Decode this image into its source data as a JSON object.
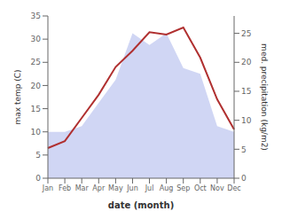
{
  "chart_data": {
    "type": "line",
    "categories": [
      "Jan",
      "Feb",
      "Mar",
      "Apr",
      "May",
      "Jun",
      "Jul",
      "Aug",
      "Sep",
      "Oct",
      "Nov",
      "Dec"
    ],
    "series": [
      {
        "type": "area",
        "axis": "y2",
        "color": "#c0c8f0",
        "values": [
          8.0,
          8.0,
          9.0,
          13.0,
          17.0,
          25.0,
          23.0,
          25.0,
          19.0,
          18.0,
          9.0,
          8.0
        ]
      },
      {
        "type": "line",
        "color": "#b03030",
        "values": [
          6.5,
          8.0,
          13.0,
          18.0,
          24.0,
          27.5,
          31.5,
          31.0,
          32.5,
          26.0,
          17.0,
          10.5
        ]
      }
    ],
    "xlabel": "date (month)",
    "ylabel": "max temp (C)",
    "y2label": "med. precipitation (kg/m2)",
    "ylim": [
      0,
      35
    ],
    "yticks": [
      0,
      5,
      10,
      15,
      20,
      25,
      30,
      35
    ],
    "y2lim": [
      0,
      28
    ],
    "y2ticks": [
      0,
      5,
      10,
      15,
      20,
      25
    ]
  }
}
